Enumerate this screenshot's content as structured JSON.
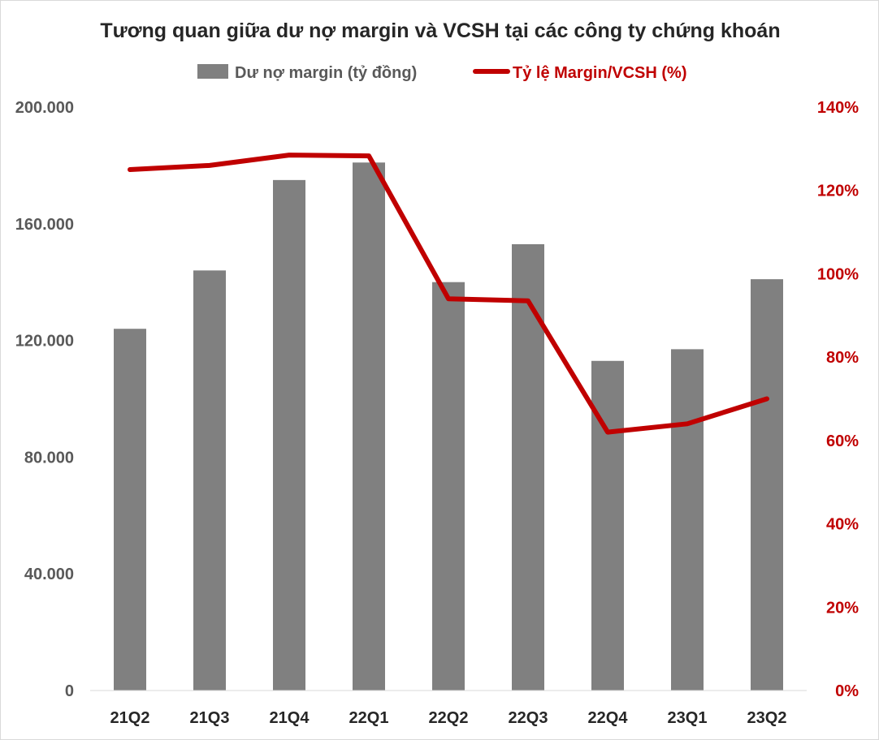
{
  "chart_data": {
    "type": "bar",
    "title": "Tương quan giữa dư nợ margin và VCSH tại các công ty chứng khoán",
    "legend_position": "top",
    "grid": false,
    "categories": [
      "21Q2",
      "21Q3",
      "21Q4",
      "22Q1",
      "22Q2",
      "22Q3",
      "22Q4",
      "23Q1",
      "23Q2"
    ],
    "series": [
      {
        "name": "Dư nợ margin (tỷ đồng)",
        "type": "bar",
        "axis": "left",
        "color": "#808080",
        "values": [
          124000,
          144000,
          175000,
          181000,
          140000,
          153000,
          113000,
          117000,
          141000
        ]
      },
      {
        "name": "Tỷ lệ Margin/VCSH (%)",
        "type": "line",
        "axis": "right",
        "color": "#c00000",
        "values": [
          125,
          126,
          128.5,
          128.3,
          94,
          93.5,
          62,
          64,
          70
        ]
      }
    ],
    "y_left": {
      "min": 0,
      "max": 200000,
      "tick_values": [
        0,
        40000,
        80000,
        120000,
        160000,
        200000
      ],
      "tick_labels": [
        "0",
        "40.000",
        "80.000",
        "120.000",
        "160.000",
        "200.000"
      ]
    },
    "y_right": {
      "min": 0,
      "max": 140,
      "tick_values": [
        0,
        20,
        40,
        60,
        80,
        100,
        120,
        140
      ],
      "tick_labels": [
        "0%",
        "20%",
        "40%",
        "60%",
        "80%",
        "100%",
        "120%",
        "140%"
      ]
    }
  }
}
